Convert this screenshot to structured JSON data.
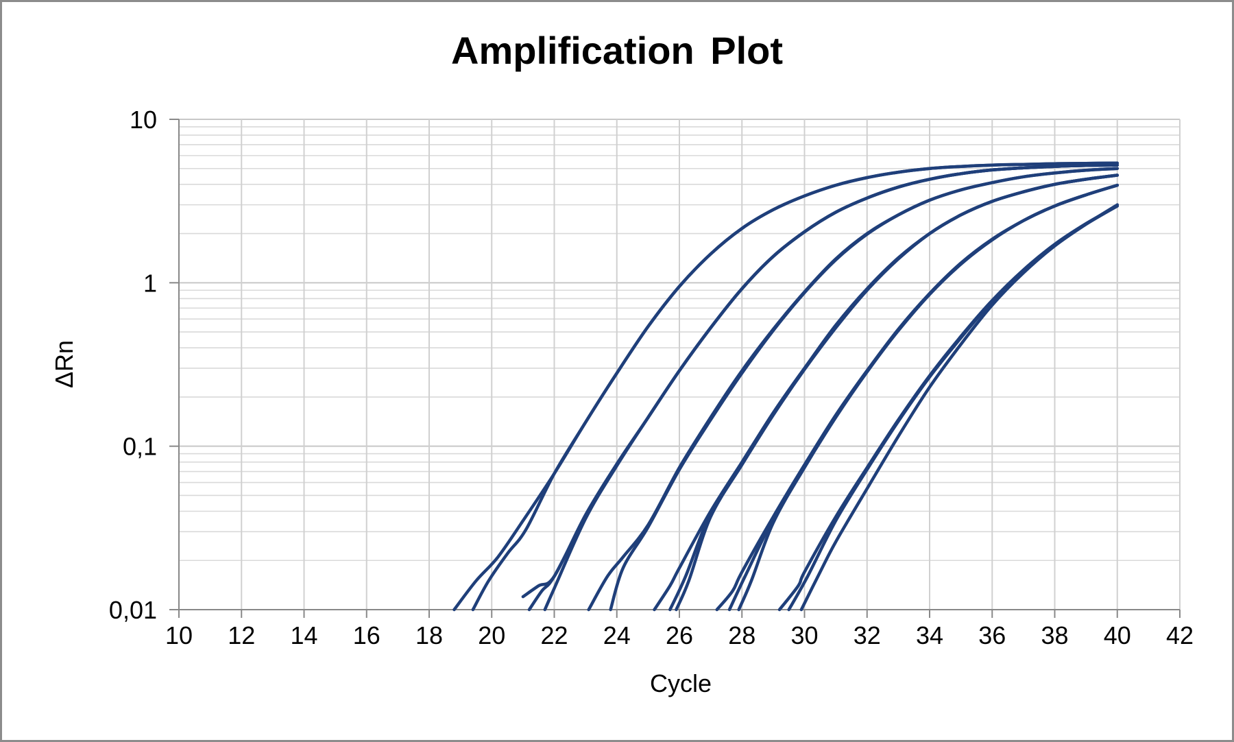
{
  "chart_data": {
    "type": "line",
    "title": "Amplification Plot",
    "xlabel": "Cycle",
    "ylabel": "ΔRn",
    "xlim": [
      10,
      42
    ],
    "ylim": [
      0.01,
      10
    ],
    "yscale": "log",
    "x_ticks": [
      "10",
      "12",
      "14",
      "16",
      "18",
      "20",
      "22",
      "24",
      "26",
      "28",
      "30",
      "32",
      "34",
      "36",
      "38",
      "40",
      "42"
    ],
    "y_ticks": [
      "0,01",
      "0,1",
      "1",
      "10"
    ],
    "grid": true,
    "line_color": "#1f3f7a",
    "series": [
      {
        "x": [
          18.8,
          19.5,
          20.2,
          21,
          22,
          23,
          24,
          25,
          26,
          27,
          28,
          29,
          30,
          31,
          32,
          33,
          34,
          35,
          36,
          37,
          38,
          39,
          40
        ],
        "y": [
          0.01,
          0.015,
          0.021,
          0.035,
          0.068,
          0.14,
          0.28,
          0.54,
          0.95,
          1.5,
          2.15,
          2.8,
          3.4,
          3.95,
          4.4,
          4.75,
          5.0,
          5.15,
          5.25,
          5.3,
          5.35,
          5.38,
          5.4
        ]
      },
      {
        "x": [
          19.4,
          19.9,
          20.5,
          21.1,
          22,
          23,
          24,
          25,
          26,
          27,
          28,
          29,
          30,
          31,
          32,
          33,
          34,
          35,
          36,
          37,
          38,
          39,
          40
        ],
        "y": [
          0.01,
          0.015,
          0.022,
          0.031,
          0.068,
          0.14,
          0.28,
          0.54,
          0.95,
          1.5,
          2.15,
          2.8,
          3.4,
          3.95,
          4.4,
          4.75,
          5.0,
          5.15,
          5.25,
          5.3,
          5.35,
          5.38,
          5.4
        ]
      },
      {
        "x": [
          21,
          21.5,
          22,
          23,
          24,
          25,
          26,
          27,
          28,
          29,
          30,
          31,
          32,
          33,
          34,
          35,
          36,
          37,
          38,
          39,
          40
        ],
        "y": [
          0.012,
          0.014,
          0.016,
          0.038,
          0.078,
          0.15,
          0.29,
          0.53,
          0.92,
          1.45,
          2.05,
          2.7,
          3.3,
          3.85,
          4.3,
          4.65,
          4.9,
          5.05,
          5.15,
          5.22,
          5.25
        ]
      },
      {
        "x": [
          21.2,
          21.6,
          22,
          23,
          24,
          25,
          26,
          27,
          28,
          29,
          30,
          31,
          32,
          33,
          34,
          35,
          36,
          37,
          38,
          39,
          40
        ],
        "y": [
          0.01,
          0.013,
          0.016,
          0.037,
          0.077,
          0.15,
          0.29,
          0.53,
          0.92,
          1.45,
          2.05,
          2.7,
          3.3,
          3.85,
          4.3,
          4.65,
          4.9,
          5.05,
          5.15,
          5.22,
          5.25
        ]
      },
      {
        "x": [
          21.7,
          22,
          23,
          24,
          25,
          26,
          27,
          28,
          29,
          30,
          31,
          32,
          33,
          34,
          35,
          36,
          37,
          38,
          39,
          40
        ],
        "y": [
          0.01,
          0.0135,
          0.036,
          0.076,
          0.15,
          0.29,
          0.53,
          0.92,
          1.45,
          2.05,
          2.7,
          3.3,
          3.85,
          4.3,
          4.65,
          4.9,
          5.05,
          5.15,
          5.22,
          5.25
        ]
      },
      {
        "x": [
          23.1,
          23.7,
          24.2,
          25,
          26,
          27,
          28,
          29,
          30,
          31,
          32,
          33,
          34,
          35,
          36,
          37,
          38,
          39,
          40
        ],
        "y": [
          0.01,
          0.016,
          0.021,
          0.033,
          0.074,
          0.15,
          0.29,
          0.52,
          0.88,
          1.4,
          2.0,
          2.6,
          3.2,
          3.7,
          4.1,
          4.45,
          4.7,
          4.88,
          5.0
        ]
      },
      {
        "x": [
          23.8,
          24.2,
          25,
          26,
          27,
          28,
          29,
          30,
          31,
          32,
          33,
          34,
          35,
          36,
          37,
          38,
          39,
          40
        ],
        "y": [
          0.01,
          0.018,
          0.032,
          0.072,
          0.145,
          0.28,
          0.51,
          0.87,
          1.38,
          1.98,
          2.6,
          3.2,
          3.7,
          4.1,
          4.45,
          4.7,
          4.88,
          5.0
        ]
      },
      {
        "x": [
          25.2,
          25.7,
          26,
          27,
          28,
          29,
          30,
          31,
          32,
          33,
          34,
          35,
          36,
          37,
          38,
          39,
          40
        ],
        "y": [
          0.01,
          0.014,
          0.018,
          0.04,
          0.08,
          0.16,
          0.3,
          0.55,
          0.92,
          1.42,
          2.0,
          2.6,
          3.15,
          3.6,
          4.0,
          4.3,
          4.55
        ]
      },
      {
        "x": [
          25.7,
          26.2,
          27,
          28,
          29,
          30,
          31,
          32,
          33,
          34,
          35,
          36,
          37,
          38,
          39,
          40
        ],
        "y": [
          0.01,
          0.016,
          0.039,
          0.079,
          0.16,
          0.3,
          0.54,
          0.91,
          1.4,
          2.0,
          2.6,
          3.15,
          3.6,
          4.0,
          4.3,
          4.55
        ]
      },
      {
        "x": [
          25.9,
          26.3,
          27,
          28,
          29,
          30,
          31,
          32,
          33,
          34,
          35,
          36,
          37,
          38,
          39,
          40
        ],
        "y": [
          0.01,
          0.015,
          0.037,
          0.077,
          0.155,
          0.295,
          0.53,
          0.9,
          1.4,
          2.0,
          2.6,
          3.15,
          3.6,
          4.0,
          4.3,
          4.55
        ]
      },
      {
        "x": [
          27.2,
          27.7,
          28,
          29,
          30,
          31,
          32,
          33,
          34,
          35,
          36,
          37,
          38,
          39,
          40
        ],
        "y": [
          0.01,
          0.013,
          0.017,
          0.037,
          0.077,
          0.155,
          0.29,
          0.52,
          0.86,
          1.32,
          1.85,
          2.4,
          2.95,
          3.45,
          3.95
        ]
      },
      {
        "x": [
          27.6,
          28.1,
          29,
          30,
          31,
          32,
          33,
          34,
          35,
          36,
          37,
          38,
          39,
          40
        ],
        "y": [
          0.01,
          0.016,
          0.036,
          0.076,
          0.153,
          0.29,
          0.51,
          0.85,
          1.3,
          1.83,
          2.4,
          2.95,
          3.45,
          3.95
        ]
      },
      {
        "x": [
          27.9,
          28.3,
          29,
          30,
          31,
          32,
          33,
          34,
          35,
          36,
          37,
          38,
          39,
          40
        ],
        "y": [
          0.01,
          0.015,
          0.034,
          0.074,
          0.15,
          0.285,
          0.51,
          0.85,
          1.3,
          1.83,
          2.4,
          2.95,
          3.45,
          3.95
        ]
      },
      {
        "x": [
          29.2,
          29.8,
          30,
          31,
          32,
          33,
          34,
          35,
          36,
          37,
          38,
          39,
          40
        ],
        "y": [
          0.01,
          0.014,
          0.017,
          0.037,
          0.074,
          0.145,
          0.27,
          0.47,
          0.78,
          1.2,
          1.72,
          2.3,
          2.95
        ]
      },
      {
        "x": [
          29.5,
          30.1,
          31,
          32,
          33,
          34,
          35,
          36,
          37,
          38,
          39,
          40
        ],
        "y": [
          0.01,
          0.016,
          0.035,
          0.072,
          0.142,
          0.265,
          0.46,
          0.77,
          1.19,
          1.7,
          2.28,
          2.95
        ]
      },
      {
        "x": [
          29.9,
          30.5,
          31,
          32,
          33,
          34,
          35,
          36,
          37,
          38,
          39,
          40
        ],
        "y": [
          0.01,
          0.017,
          0.026,
          0.055,
          0.115,
          0.23,
          0.42,
          0.73,
          1.15,
          1.68,
          2.28,
          3.0
        ]
      }
    ]
  }
}
